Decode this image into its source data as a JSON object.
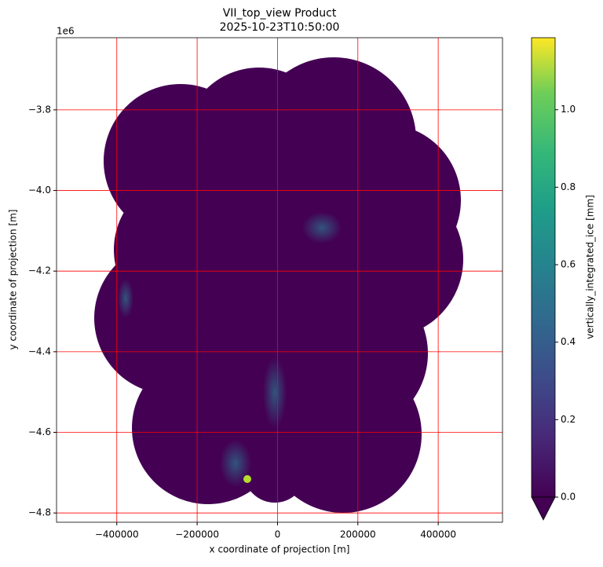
{
  "chart_data": {
    "type": "image",
    "title": "VII_top_view Product",
    "subtitle": "2025-10-23T10:50:00",
    "x_label": "x coordinate of projection [m]",
    "y_label": "y coordinate of projection [m]",
    "y_offset_label": "1e6",
    "xlim": [
      -550000,
      560000
    ],
    "xticks": [
      {
        "value": -400000,
        "label": "−400000"
      },
      {
        "value": -200000,
        "label": "−200000"
      },
      0,
      200000,
      400000
    ],
    "ylim": [
      -4823000,
      -3621000
    ],
    "yticks": [
      {
        "value": -3800000,
        "label": "−3.8"
      },
      {
        "value": -4000000,
        "label": "−4.0"
      },
      {
        "value": -4200000,
        "label": "−4.2"
      },
      {
        "value": -4400000,
        "label": "−4.4"
      },
      {
        "value": -4600000,
        "label": "−4.6"
      },
      {
        "value": -4800000,
        "label": "−4.8"
      }
    ],
    "grid": true,
    "grid_color": "#ff0000",
    "colormap": "viridis",
    "colorbar_label": "vertically_integrated_ice [mm]",
    "clim": [
      0,
      1.186
    ],
    "cticks": [
      {
        "value": 0,
        "label": "0.0"
      },
      0.2,
      0.4,
      0.6,
      0.8,
      {
        "value": 1,
        "label": "1.0"
      }
    ],
    "extend": "min"
  }
}
